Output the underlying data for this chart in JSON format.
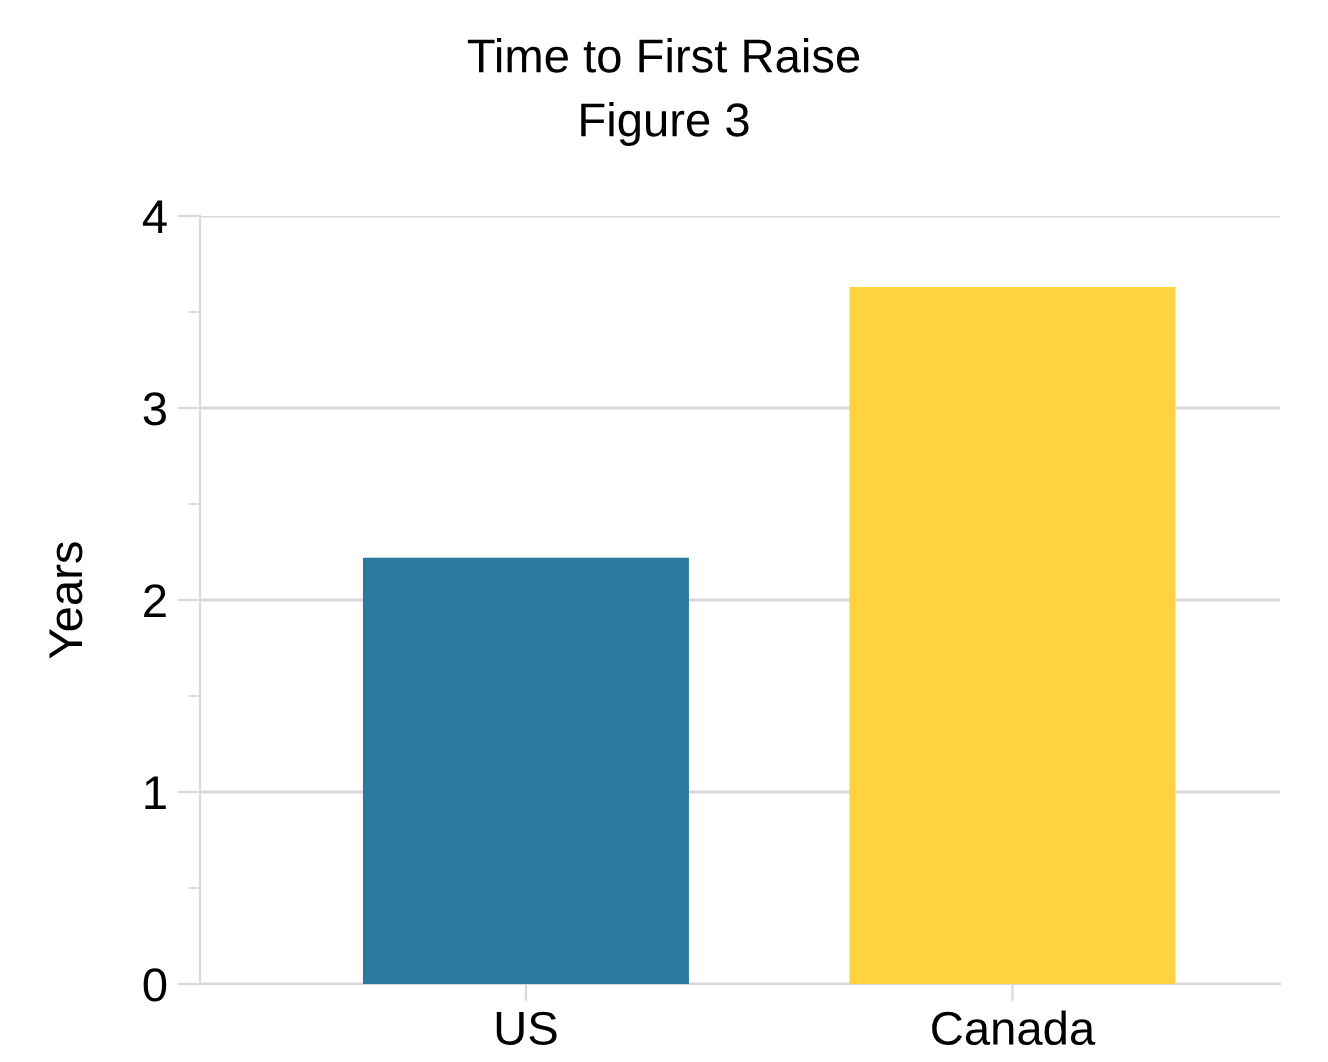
{
  "chart_data": {
    "type": "bar",
    "title": "Time to First Raise",
    "subtitle": "Figure 3",
    "ylabel": "Years",
    "categories": [
      "US",
      "Canada"
    ],
    "values": [
      2.22,
      3.63
    ],
    "colors": [
      "#2a7aa0",
      "#fdd33f"
    ],
    "ylim": [
      0,
      4
    ],
    "yticks": [
      0,
      1,
      2,
      3,
      4
    ],
    "grid": "y",
    "legend": false
  }
}
